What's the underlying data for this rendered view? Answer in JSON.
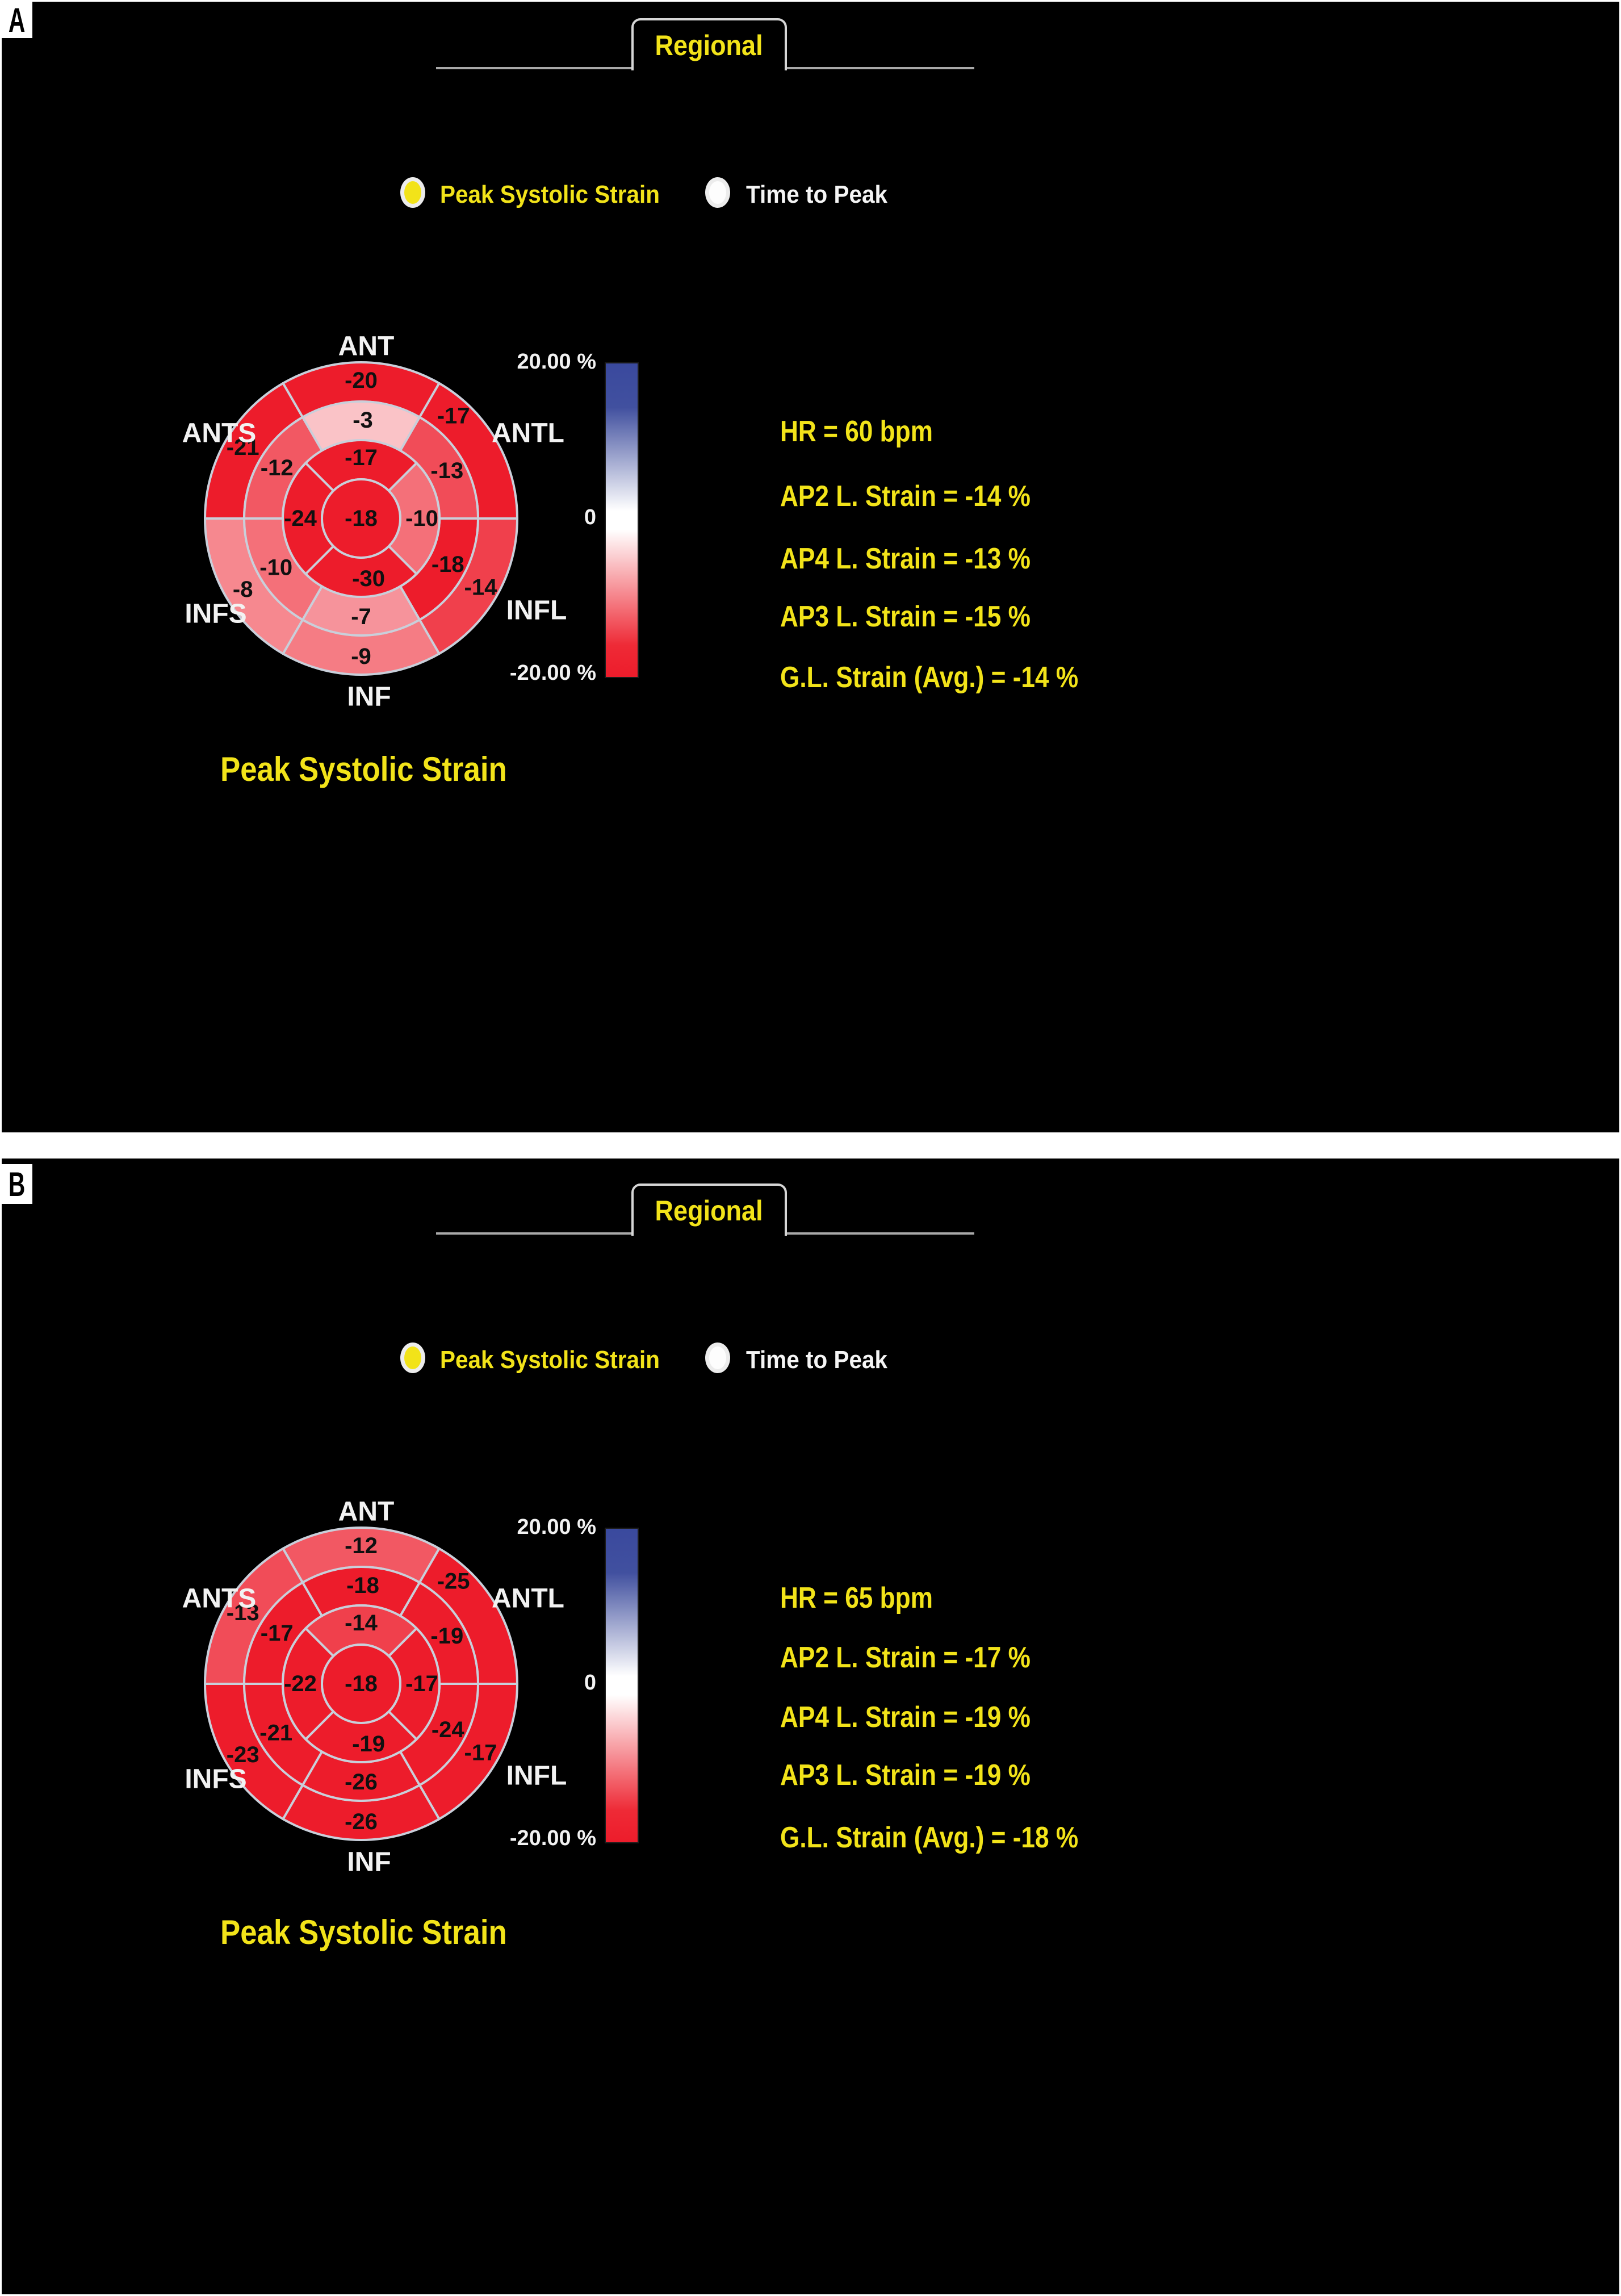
{
  "strain_scale": {
    "negative_color": "#ed1c2b",
    "positive_color": "#3a499e",
    "zero_color": "#ffffff",
    "accent_yellow": "#f2e319"
  },
  "panels": [
    {
      "corner_label": "A",
      "tab_label": "Regional",
      "radios": [
        {
          "label": "Peak Systolic Strain",
          "selected": true
        },
        {
          "label": "Time to Peak",
          "selected": false
        }
      ],
      "bullseye": {
        "sector_labels": [
          "ANT",
          "ANTL",
          "INFL",
          "INF",
          "INFS",
          "ANTS"
        ],
        "outer_values": [
          -20,
          -17,
          -14,
          -9,
          -8,
          -21
        ],
        "mid_values": [
          -3,
          -13,
          -18,
          -7,
          -10,
          -12
        ],
        "apical_values": [
          -17,
          -10,
          -30,
          -24
        ],
        "center_value": -18
      },
      "colorbar": {
        "top_label": "20.00 %",
        "zero_label": "0",
        "bottom_label": "-20.00 %"
      },
      "stats": [
        "HR = 60 bpm",
        "AP2 L. Strain = -14 %",
        "AP4 L. Strain = -13 %",
        "AP3 L. Strain = -15 %",
        "G.L. Strain (Avg.) = -14 %"
      ],
      "title": "Peak Systolic Strain"
    },
    {
      "corner_label": "B",
      "tab_label": "Regional",
      "radios": [
        {
          "label": "Peak Systolic Strain",
          "selected": true
        },
        {
          "label": "Time to Peak",
          "selected": false
        }
      ],
      "bullseye": {
        "sector_labels": [
          "ANT",
          "ANTL",
          "INFL",
          "INF",
          "INFS",
          "ANTS"
        ],
        "outer_values": [
          -12,
          -25,
          -17,
          -26,
          -23,
          -13
        ],
        "mid_values": [
          -18,
          -19,
          -24,
          -26,
          -21,
          -17
        ],
        "apical_values": [
          -14,
          -17,
          -19,
          -22
        ],
        "center_value": -18
      },
      "colorbar": {
        "top_label": "20.00 %",
        "zero_label": "0",
        "bottom_label": "-20.00 %"
      },
      "stats": [
        "HR = 65 bpm",
        "AP2 L. Strain = -17 %",
        "AP4 L. Strain = -19 %",
        "AP3 L. Strain = -19 %",
        "G.L. Strain (Avg.) = -18 %"
      ],
      "title": "Peak Systolic Strain"
    }
  ]
}
